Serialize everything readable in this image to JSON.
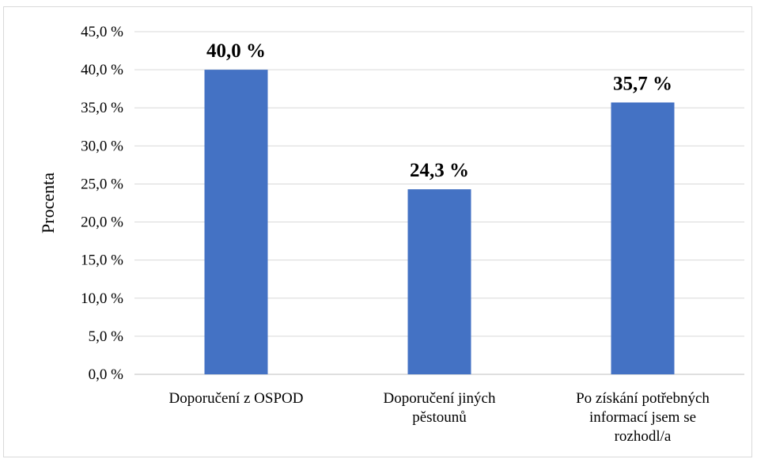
{
  "chart_data": {
    "type": "bar",
    "title": "",
    "xlabel": "",
    "ylabel": "Procenta",
    "ylim": [
      0,
      45
    ],
    "yticks": [
      0,
      5,
      10,
      15,
      20,
      25,
      30,
      35,
      40,
      45
    ],
    "ytick_labels": [
      "0,0 %",
      "5,0 %",
      "10,0 %",
      "15,0 %",
      "20,0 %",
      "25,0 %",
      "30,0 %",
      "35,0 %",
      "40,0 %",
      "45,0 %"
    ],
    "categories": [
      [
        "Doporučení z OSPOD"
      ],
      [
        "Doporučení jiných",
        "pěstounů"
      ],
      [
        "Po získání potřebných",
        "informací jsem se",
        "rozhodl/a"
      ]
    ],
    "values": [
      40.0,
      24.3,
      35.7
    ],
    "data_labels": [
      "40,0 %",
      "24,3 %",
      "35,7 %"
    ],
    "grid": true,
    "legend": "none",
    "colors": {
      "bar": "#4472C4",
      "grid": "#d9d9d9",
      "axis": "#bfbfbf"
    }
  }
}
